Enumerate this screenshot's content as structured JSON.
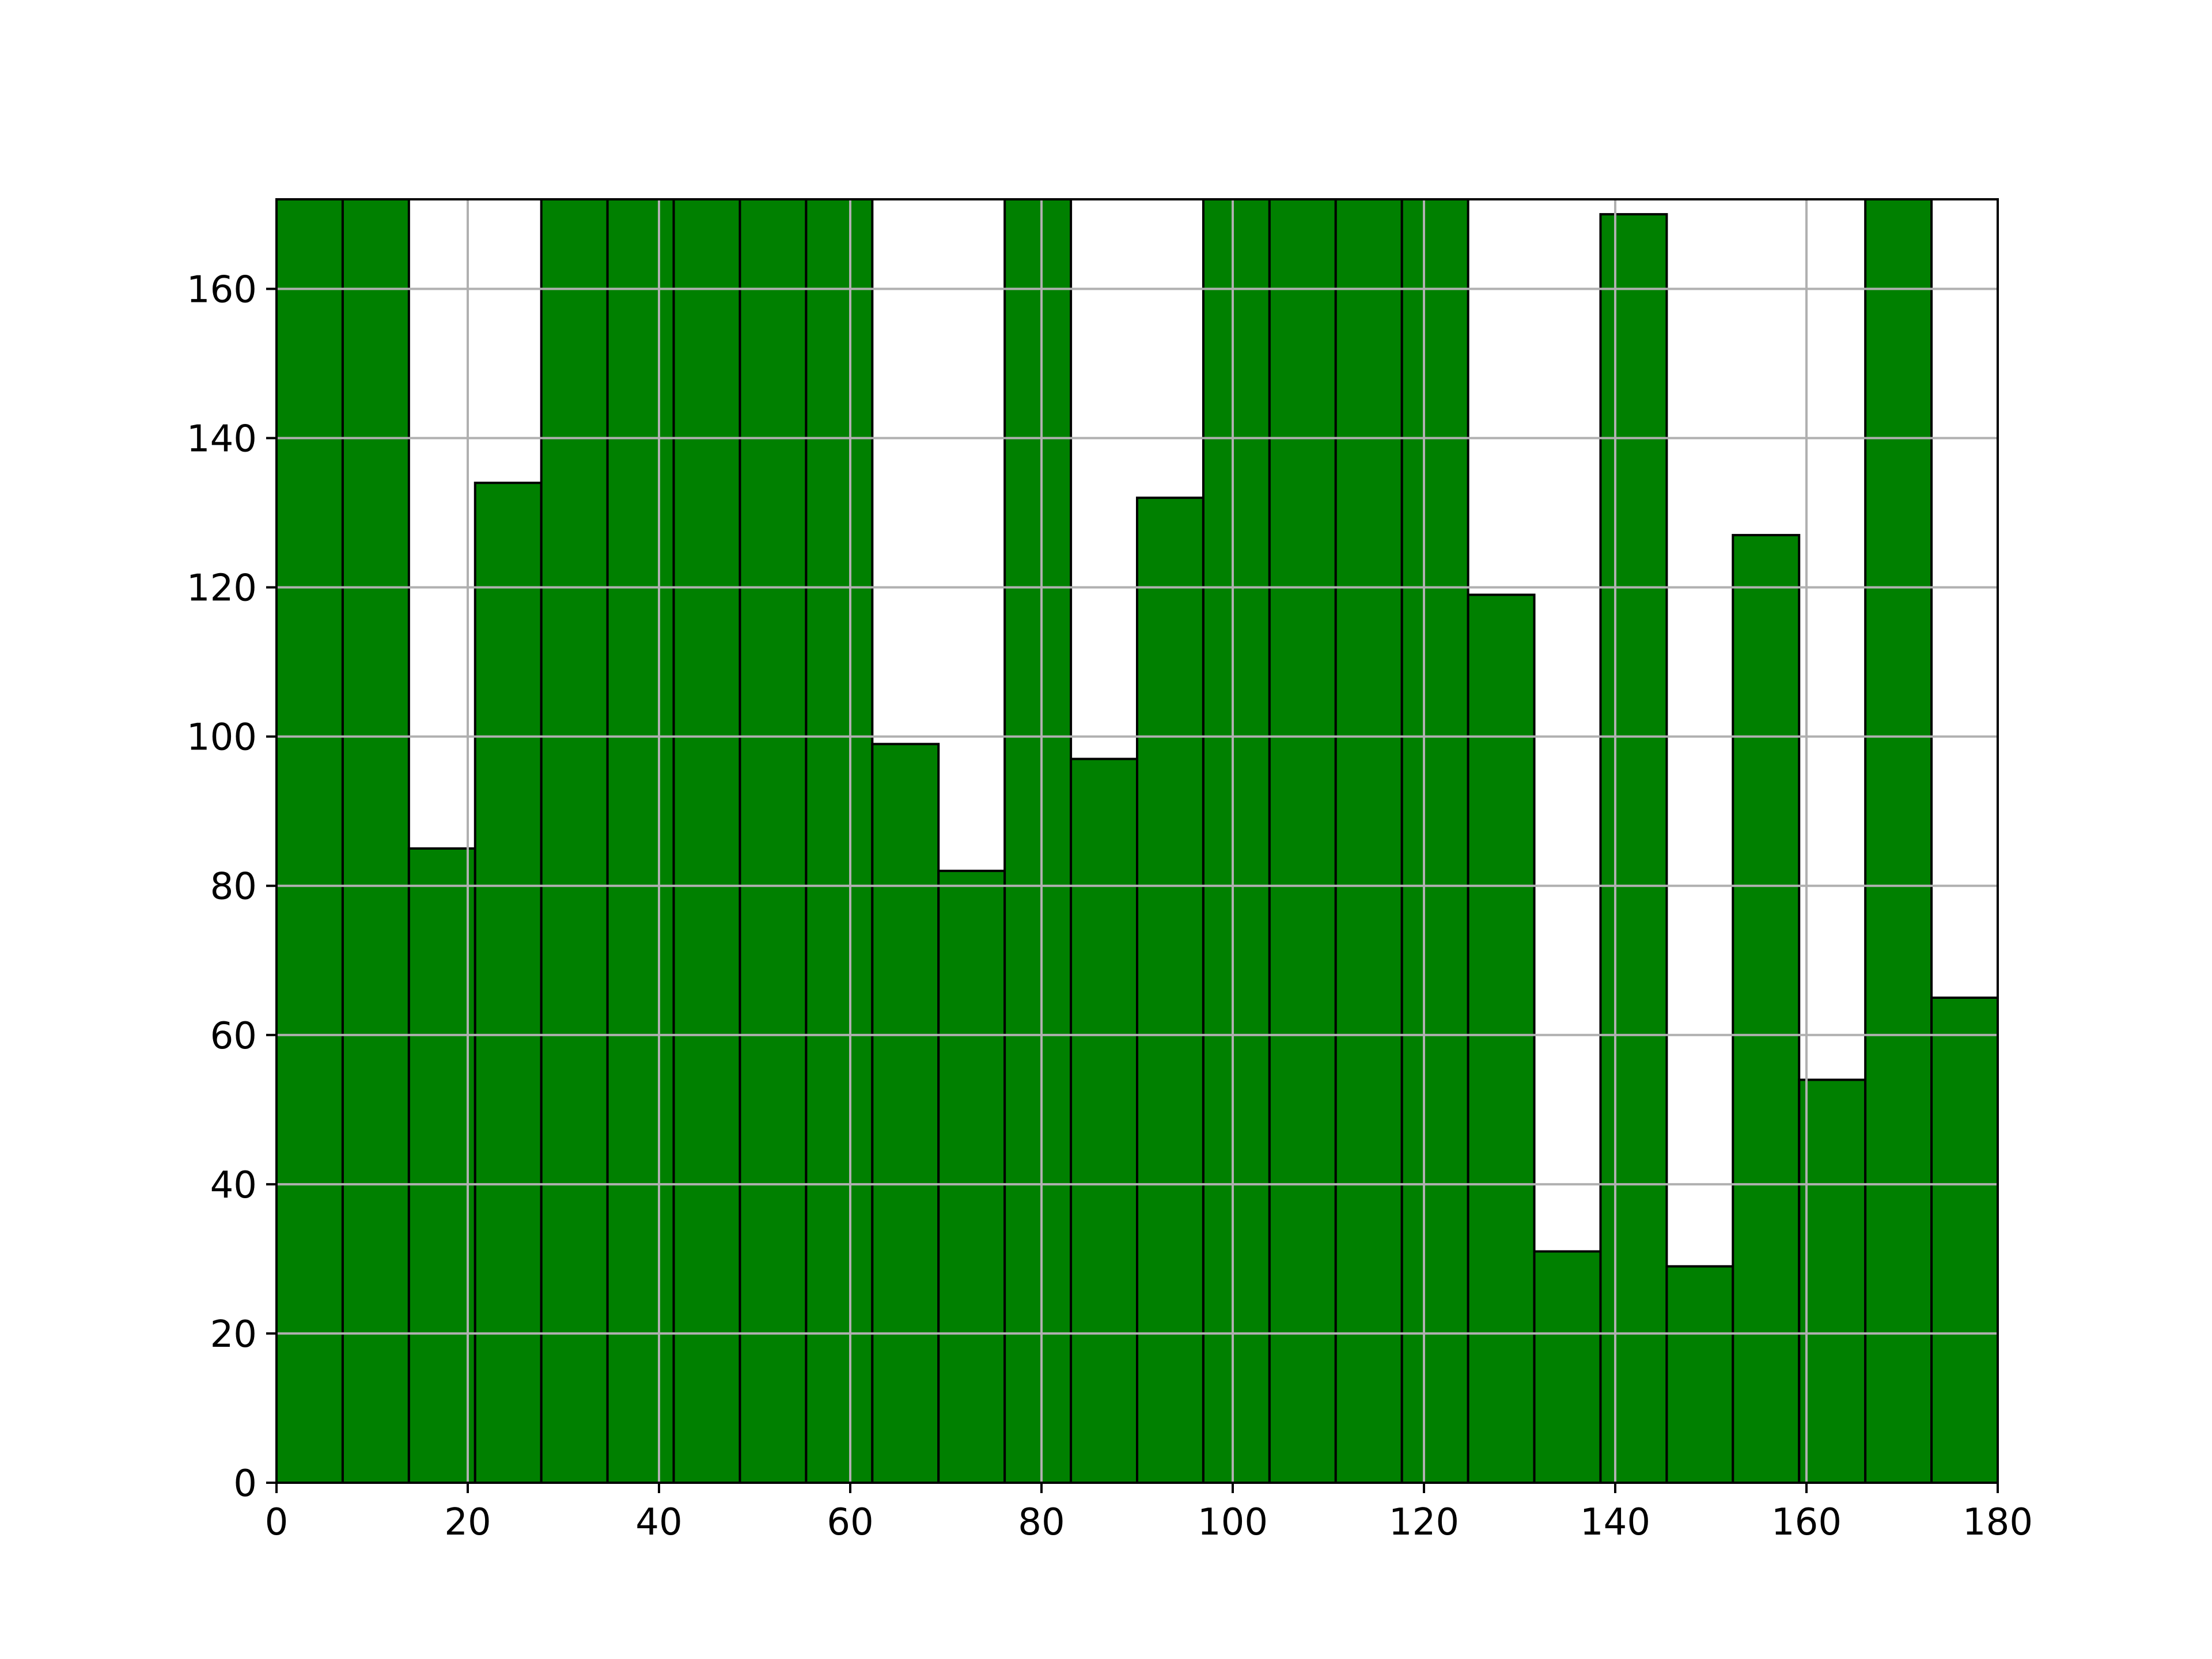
{
  "colors": {
    "bar_fill": "#008000",
    "bar_edge": "#000000",
    "grid": "#b0b0b0",
    "axes": "#000000",
    "background": "#ffffff"
  },
  "chart_data": {
    "type": "bar",
    "variant": "histogram",
    "title": "",
    "xlabel": "",
    "ylabel": "",
    "grid": true,
    "xlim": [
      0,
      180
    ],
    "ylim": [
      0,
      172
    ],
    "bin_edges": [
      0,
      6.923,
      13.846,
      20.769,
      27.692,
      34.615,
      41.538,
      48.462,
      55.385,
      62.308,
      69.231,
      76.154,
      83.077,
      90.0,
      96.923,
      103.846,
      110.769,
      117.692,
      124.615,
      131.538,
      138.462,
      145.385,
      152.308,
      159.231,
      166.154,
      173.077,
      180.0
    ],
    "values": [
      172,
      172,
      85,
      134,
      172,
      172,
      172,
      172,
      172,
      99,
      82,
      172,
      97,
      132,
      172,
      172,
      172,
      172,
      119,
      31,
      170,
      29,
      127,
      54,
      172,
      65
    ],
    "x_ticks": [
      {
        "value": 0,
        "label": "0"
      },
      {
        "value": 20,
        "label": "20"
      },
      {
        "value": 40,
        "label": "40"
      },
      {
        "value": 60,
        "label": "60"
      },
      {
        "value": 80,
        "label": "80"
      },
      {
        "value": 100,
        "label": "100"
      },
      {
        "value": 120,
        "label": "120"
      },
      {
        "value": 140,
        "label": "140"
      },
      {
        "value": 160,
        "label": "160"
      },
      {
        "value": 180,
        "label": "180"
      }
    ],
    "y_ticks": [
      {
        "value": 0,
        "label": "0"
      },
      {
        "value": 20,
        "label": "20"
      },
      {
        "value": 40,
        "label": "40"
      },
      {
        "value": 60,
        "label": "60"
      },
      {
        "value": 80,
        "label": "80"
      },
      {
        "value": 100,
        "label": "100"
      },
      {
        "value": 120,
        "label": "120"
      },
      {
        "value": 140,
        "label": "140"
      },
      {
        "value": 160,
        "label": "160"
      }
    ]
  }
}
